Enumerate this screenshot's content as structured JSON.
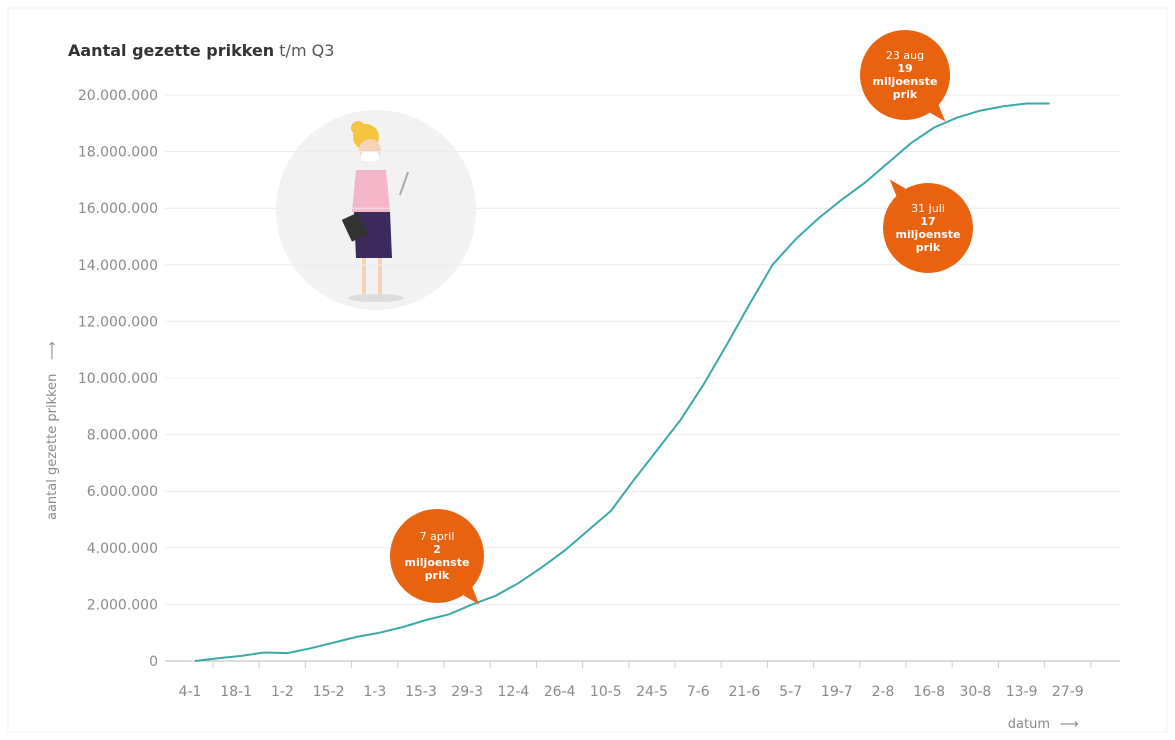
{
  "chart_data": {
    "type": "line",
    "title": "Aantal gezette prikken",
    "subtitle": "t/m Q3",
    "y_label": "aantal gezette prikken",
    "x_label": "datum",
    "categories": [
      "4-1",
      null,
      "18-1",
      null,
      "1-2",
      null,
      "15-2",
      null,
      "1-3",
      null,
      "15-3",
      null,
      "29-3",
      null,
      "12-4",
      null,
      "26-4",
      null,
      "10-5",
      null,
      "24-5",
      null,
      "7-6",
      null,
      "21-6",
      null,
      "5-7",
      null,
      "19-7",
      null,
      "2-8",
      null,
      "16-8",
      null,
      "30-8",
      null,
      "13-9",
      null,
      "27-9"
    ],
    "values": [
      0,
      100000,
      180000,
      300000,
      280000,
      450000,
      650000,
      850000,
      1000000,
      1200000,
      1450000,
      1650000,
      2000000,
      2300000,
      2750000,
      3300000,
      3900000,
      4600000,
      5300000,
      6400000,
      7450000,
      8500000,
      9750000,
      11150000,
      12600000,
      14000000,
      14900000,
      15650000,
      16300000,
      16900000,
      17600000,
      18300000,
      18850000,
      19200000,
      19450000,
      19600000,
      19700000,
      19700000,
      null
    ],
    "color": "#3aaaa8",
    "ylim": [
      0,
      20000000
    ],
    "yticks": [
      0,
      {
        "value": 2000000,
        "label": "2.000.000"
      },
      {
        "value": 4000000,
        "label": "4.000.000"
      },
      {
        "value": 6000000,
        "label": "6.000.000"
      },
      {
        "value": 8000000,
        "label": "8.000.000"
      },
      {
        "value": 10000000,
        "label": "10.000.000"
      },
      {
        "value": 12000000,
        "label": "12.000.000"
      },
      {
        "value": 14000000,
        "label": "14.000.000"
      },
      {
        "value": 16000000,
        "label": "16.000.000"
      },
      {
        "value": 18000000,
        "label": "18.000.000"
      },
      {
        "value": 20000000,
        "label": "20.000.000"
      }
    ],
    "grid": true,
    "annotations": [
      {
        "date": "7 april",
        "text": "2 miljoenste prik"
      },
      {
        "date": "31 juli",
        "text": "17 miljoenste prik"
      },
      {
        "date": "23 aug",
        "text": "19 miljoenste prik"
      }
    ]
  }
}
